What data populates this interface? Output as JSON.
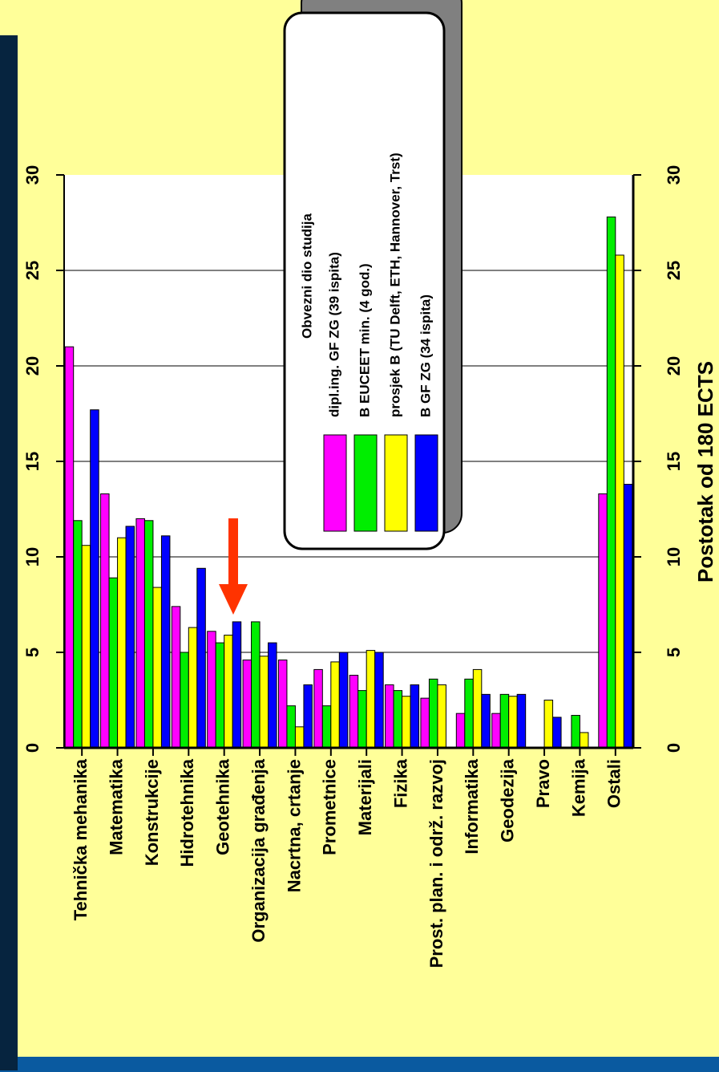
{
  "colors": {
    "slide_background": "#ffff99",
    "frame_blue": "#0a5aa0",
    "arrow": "#ff3300",
    "legend_shadow": "#808080"
  },
  "chart_data": {
    "type": "bar",
    "orientation": "rotated-90-ccw",
    "ylabel": "Postotak od 180 ECTS",
    "ylim": [
      0,
      30
    ],
    "yticks": [
      "0",
      "5",
      "10",
      "15",
      "20",
      "25",
      "30"
    ],
    "grid": true,
    "legend_title": "Obvezni dio studija",
    "legend_position": "top-center",
    "categories": [
      "Tehnička mehanika",
      "Matematika",
      "Konstrukcije",
      "Hidrotehnika",
      "Geotehnika",
      "Organizacija građenja",
      "Nacrtna, crtanje",
      "Prometnice",
      "Materijali",
      "Fizika",
      "Prost. plan. i održ. razvoj",
      "Informatika",
      "Geodezija",
      "Pravo",
      "Kemija",
      "Ostali"
    ],
    "series": [
      {
        "name": "dipl.ing. GF ZG (39 ispita)",
        "color": "#ff00ff",
        "values": [
          21.0,
          13.3,
          12.0,
          7.4,
          6.1,
          4.6,
          4.6,
          4.1,
          3.8,
          3.3,
          2.6,
          1.8,
          1.8,
          0,
          0,
          13.3
        ]
      },
      {
        "name": "B EUCEET min. (4 god.)",
        "color": "#00ee00",
        "values": [
          11.9,
          8.9,
          11.9,
          5.0,
          5.5,
          6.6,
          2.2,
          2.2,
          3.0,
          3.0,
          3.6,
          3.6,
          2.8,
          0,
          1.7,
          27.8
        ]
      },
      {
        "name": "prosjek B (TU Delft, ETH, Hannover, Trst)",
        "color": "#ffff00",
        "values": [
          10.6,
          11.0,
          8.4,
          6.3,
          5.9,
          4.8,
          1.1,
          4.5,
          5.1,
          2.7,
          3.3,
          4.1,
          2.7,
          2.5,
          0.8,
          25.8
        ]
      },
      {
        "name": "B GF ZG (34 ispita)",
        "color": "#0000ff",
        "values": [
          17.7,
          11.6,
          11.1,
          9.4,
          6.6,
          5.5,
          3.3,
          5.0,
          5.0,
          3.3,
          0,
          2.8,
          2.8,
          1.6,
          0,
          13.8
        ]
      }
    ],
    "annotation": "arrow-pointing-at-Geotehnika"
  }
}
